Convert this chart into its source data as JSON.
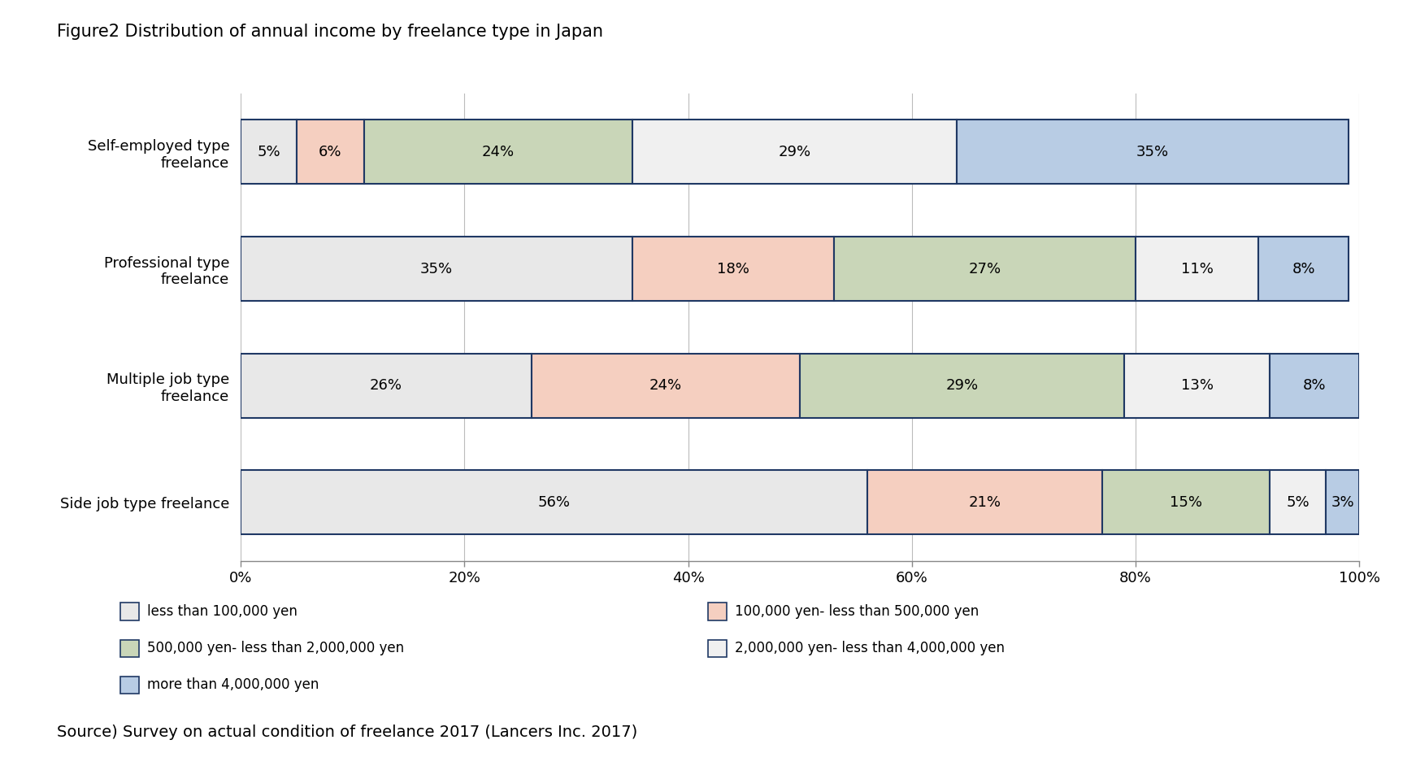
{
  "title": "Figure2 Distribution of annual income by freelance type in Japan",
  "source": "Source) Survey on actual condition of freelance 2017 (Lancers Inc. 2017)",
  "categories": [
    "Side job type freelance",
    "Multiple job type\nfreelance",
    "Professional type\nfreelance",
    "Self-employed type\nfreelance"
  ],
  "series": [
    {
      "label": "less than 100,000 yen",
      "color": "#e8e8e8",
      "values": [
        56,
        26,
        35,
        5
      ]
    },
    {
      "label": "100,000 yen- less than 500,000 yen",
      "color": "#f5cfc0",
      "values": [
        21,
        24,
        18,
        6
      ]
    },
    {
      "label": "500,000 yen- less than 2,000,000 yen",
      "color": "#c9d6b8",
      "values": [
        15,
        29,
        27,
        24
      ]
    },
    {
      "label": "2,000,000 yen- less than 4,000,000 yen",
      "color": "#f0f0f0",
      "values": [
        5,
        13,
        11,
        29
      ]
    },
    {
      "label": "more than 4,000,000 yen",
      "color": "#b8cce4",
      "values": [
        3,
        8,
        8,
        35
      ]
    }
  ],
  "bar_edge_color": "#1f3864",
  "bar_edge_width": 1.5,
  "background_color": "#ffffff",
  "xlim": [
    0,
    100
  ],
  "xticks": [
    0,
    20,
    40,
    60,
    80,
    100
  ],
  "xticklabels": [
    "0%",
    "20%",
    "40%",
    "60%",
    "80%",
    "100%"
  ],
  "bar_height": 0.55,
  "title_fontsize": 15,
  "label_fontsize": 13,
  "tick_fontsize": 13,
  "legend_fontsize": 12,
  "source_fontsize": 14,
  "ytick_fontsize": 13
}
